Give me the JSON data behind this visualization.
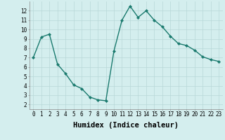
{
  "x": [
    0,
    1,
    2,
    3,
    4,
    5,
    6,
    7,
    8,
    9,
    10,
    11,
    12,
    13,
    14,
    15,
    16,
    17,
    18,
    19,
    20,
    21,
    22,
    23
  ],
  "y": [
    7.0,
    9.2,
    9.5,
    6.3,
    5.3,
    4.1,
    3.7,
    2.8,
    2.5,
    2.4,
    7.7,
    11.0,
    12.5,
    11.3,
    12.0,
    11.0,
    10.3,
    9.3,
    8.5,
    8.3,
    7.8,
    7.1,
    6.8,
    6.6
  ],
  "line_color": "#1a7a6e",
  "marker": "D",
  "markersize": 2.2,
  "linewidth": 1.0,
  "bg_color": "#d4eeee",
  "grid_color": "#b8d8d8",
  "xlabel": "Humidex (Indice chaleur)",
  "xlim": [
    -0.5,
    23.5
  ],
  "ylim": [
    1.5,
    13.0
  ],
  "yticks": [
    2,
    3,
    4,
    5,
    6,
    7,
    8,
    9,
    10,
    11,
    12
  ],
  "xticks": [
    0,
    1,
    2,
    3,
    4,
    5,
    6,
    7,
    8,
    9,
    10,
    11,
    12,
    13,
    14,
    15,
    16,
    17,
    18,
    19,
    20,
    21,
    22,
    23
  ],
  "tick_fontsize": 5.5,
  "xlabel_fontsize": 7.5
}
